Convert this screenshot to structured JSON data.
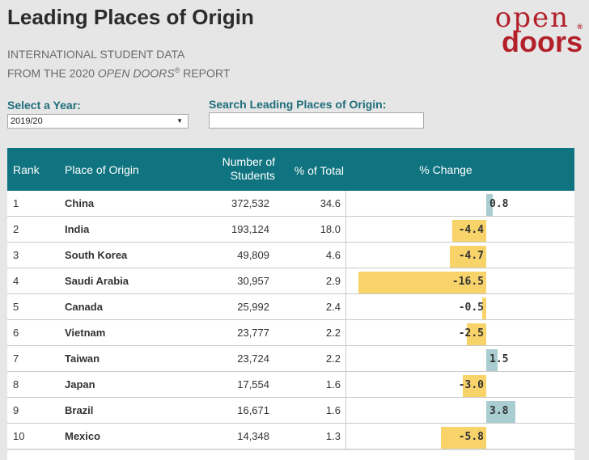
{
  "header": {
    "title": "Leading Places of Origin",
    "subtitle_line1": "INTERNATIONAL STUDENT DATA",
    "subtitle_line2_prefix": "FROM THE 2020 ",
    "subtitle_line2_italic": "OPEN DOORS",
    "subtitle_line2_reg": "®",
    "subtitle_line2_suffix": " REPORT"
  },
  "logo": {
    "open": "open",
    "doors": "doors",
    "reg": "®"
  },
  "controls": {
    "year_label": "Select a Year:",
    "year_value": "2019/20",
    "search_label": "Search Leading Places of Origin:",
    "search_value": ""
  },
  "table": {
    "headers": {
      "rank": "Rank",
      "place": "Place of Origin",
      "number_line1": "Number of",
      "number_line2": "Students",
      "pct": "% of Total",
      "change": "% Change"
    },
    "rows": [
      {
        "rank": "1",
        "place": "China",
        "number": "372,532",
        "pct": "34.6",
        "change": 0.8,
        "change_label": "0.8"
      },
      {
        "rank": "2",
        "place": "India",
        "number": "193,124",
        "pct": "18.0",
        "change": -4.4,
        "change_label": "-4.4"
      },
      {
        "rank": "3",
        "place": "South Korea",
        "number": "49,809",
        "pct": "4.6",
        "change": -4.7,
        "change_label": "-4.7"
      },
      {
        "rank": "4",
        "place": "Saudi Arabia",
        "number": "30,957",
        "pct": "2.9",
        "change": -16.5,
        "change_label": "-16.5"
      },
      {
        "rank": "5",
        "place": "Canada",
        "number": "25,992",
        "pct": "2.4",
        "change": -0.5,
        "change_label": "-0.5"
      },
      {
        "rank": "6",
        "place": "Vietnam",
        "number": "23,777",
        "pct": "2.2",
        "change": -2.5,
        "change_label": "-2.5"
      },
      {
        "rank": "7",
        "place": "Taiwan",
        "number": "23,724",
        "pct": "2.2",
        "change": 1.5,
        "change_label": "1.5"
      },
      {
        "rank": "8",
        "place": "Japan",
        "number": "17,554",
        "pct": "1.6",
        "change": -3.0,
        "change_label": "-3.0"
      },
      {
        "rank": "9",
        "place": "Brazil",
        "number": "16,671",
        "pct": "1.6",
        "change": 3.8,
        "change_label": "3.8"
      },
      {
        "rank": "10",
        "place": "Mexico",
        "number": "14,348",
        "pct": "1.3",
        "change": -5.8,
        "change_label": "-5.8"
      }
    ]
  },
  "colors": {
    "header_bg": "#0f7480",
    "negative_bar": "#f7d36a",
    "positive_bar": "#a9cdd1",
    "brand_red": "#b3202a",
    "label_teal": "#1f6e7a"
  }
}
